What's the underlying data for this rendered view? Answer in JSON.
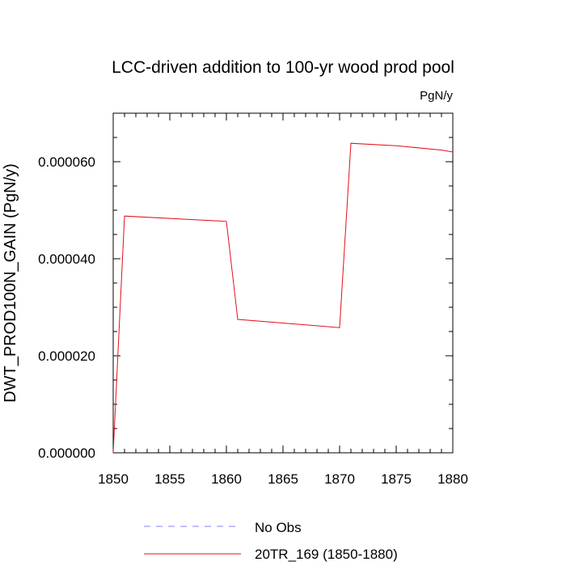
{
  "chart_data": {
    "type": "line",
    "title": "LCC-driven addition to 100-yr wood prod pool",
    "units_label": "PgN/y",
    "ylabel": "DWT_PROD100N_GAIN  (PgN/y)",
    "xlabel": "",
    "xlim": [
      1850,
      1880
    ],
    "ylim": [
      0,
      7e-05
    ],
    "x_ticks": [
      1850,
      1855,
      1860,
      1865,
      1870,
      1875,
      1880
    ],
    "x_tick_labels": [
      "1850",
      "1855",
      "1860",
      "1865",
      "1870",
      "1875",
      "1880"
    ],
    "y_ticks": [
      0,
      2e-05,
      4e-05,
      6e-05
    ],
    "y_tick_labels": [
      "0.000000",
      "0.000020",
      "0.000040",
      "0.000060"
    ],
    "grid": false,
    "legend_position": "bottom",
    "series": [
      {
        "name": "No Obs",
        "color": "#8080ff",
        "dash": true,
        "x": [],
        "y": []
      },
      {
        "name": "20TR_169 (1850-1880)",
        "color": "#e0101a",
        "dash": false,
        "x": [
          1850,
          1851,
          1860,
          1861,
          1870,
          1871,
          1875,
          1879,
          1880
        ],
        "y": [
          0.0,
          4.88e-05,
          4.77e-05,
          2.75e-05,
          2.58e-05,
          6.38e-05,
          6.33e-05,
          6.24e-05,
          6.2e-05
        ]
      }
    ]
  }
}
